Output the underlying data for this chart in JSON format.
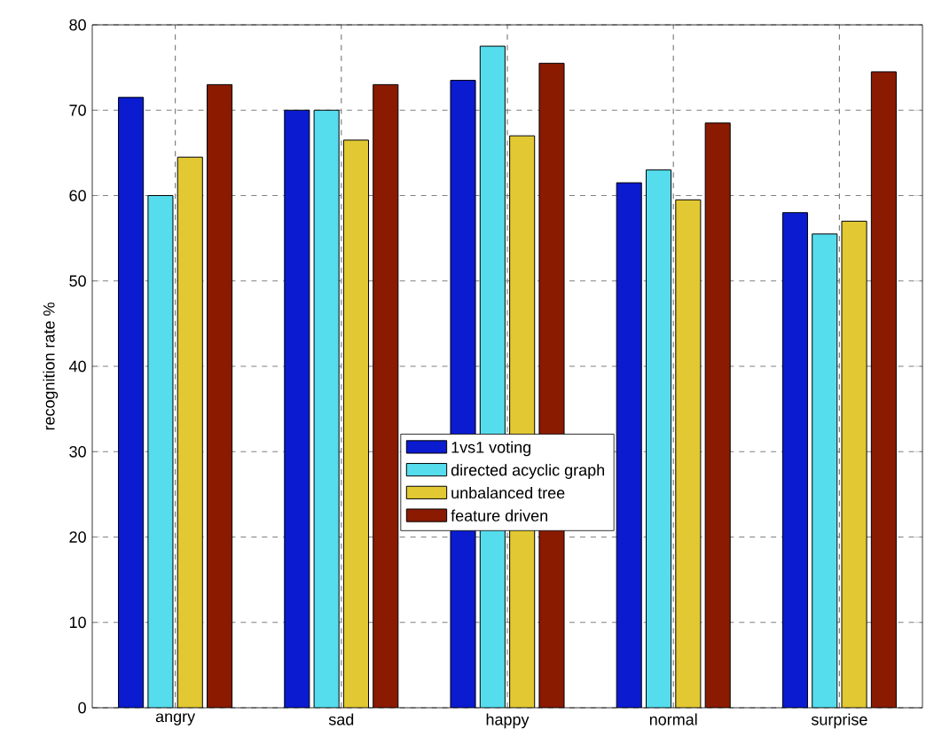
{
  "chart_data": {
    "type": "bar",
    "ylabel": "recognition rate %",
    "categories": [
      "angry",
      "sad",
      "happy",
      "normal",
      "surprise"
    ],
    "series": [
      {
        "name": "1vs1 voting",
        "color": "#0a1bd0",
        "values": [
          71.5,
          70,
          73.5,
          61.5,
          58
        ]
      },
      {
        "name": "directed acyclic graph",
        "color": "#55dded",
        "values": [
          60,
          70,
          77.5,
          63,
          55.5
        ]
      },
      {
        "name": "unbalanced tree",
        "color": "#e2c832",
        "values": [
          64.5,
          66.5,
          67,
          59.5,
          57
        ]
      },
      {
        "name": "feature driven",
        "color": "#8a1a00",
        "values": [
          73,
          73,
          75.5,
          68.5,
          74.5
        ]
      }
    ],
    "ylim": [
      0,
      80
    ],
    "yticks": [
      0,
      10,
      20,
      30,
      40,
      50,
      60,
      70,
      80
    ],
    "grid": true,
    "legend": "center"
  }
}
